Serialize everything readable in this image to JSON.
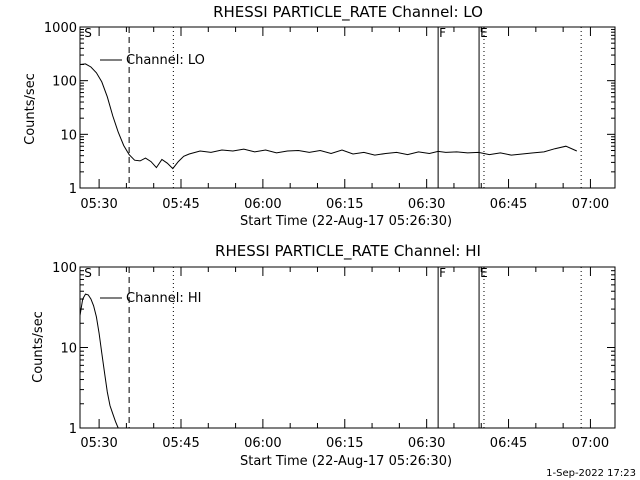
{
  "footer": {
    "timestamp": "1-Sep-2022 17:23"
  },
  "chart_data": [
    {
      "type": "line",
      "title": "RHESSI PARTICLE_RATE Channel: LO",
      "xlabel": "Start Time (22-Aug-17 05:26:30)",
      "ylabel": "Counts/sec",
      "yscale": "log",
      "ylim": [
        1,
        1000
      ],
      "y_ticks": [
        "1",
        "10",
        "100",
        "1000"
      ],
      "xlim_minutes": [
        0,
        98
      ],
      "x_ticks": [
        {
          "min": 3.5,
          "label": "05:30"
        },
        {
          "min": 18.5,
          "label": "05:45"
        },
        {
          "min": 33.5,
          "label": "06:00"
        },
        {
          "min": 48.5,
          "label": "06:15"
        },
        {
          "min": 63.5,
          "label": "06:30"
        },
        {
          "min": 78.5,
          "label": "06:45"
        },
        {
          "min": 93.5,
          "label": "07:00"
        }
      ],
      "legend": "Channel: LO",
      "markers": [
        {
          "min": 0.6,
          "label": "S",
          "style": "none"
        },
        {
          "min": 9.0,
          "label": "",
          "style": "dashed"
        },
        {
          "min": 17.1,
          "label": "",
          "style": "dotted"
        },
        {
          "min": 65.6,
          "label": "F",
          "style": "solid"
        },
        {
          "min": 73.1,
          "label": "E",
          "style": "solid"
        },
        {
          "min": 74.0,
          "label": "",
          "style": "dotted"
        },
        {
          "min": 91.8,
          "label": "",
          "style": "dotted"
        }
      ],
      "series": [
        {
          "x": [
            0,
            1,
            2,
            3,
            4,
            5,
            6,
            7,
            8,
            9,
            10,
            11,
            12,
            13,
            14,
            15,
            16,
            17,
            18,
            19,
            20,
            22,
            24,
            26,
            28,
            30,
            32,
            34,
            36,
            38,
            40,
            42,
            44,
            46,
            48,
            50,
            52,
            54,
            56,
            58,
            60,
            62,
            64,
            65.6,
            67,
            69,
            71,
            73,
            75,
            77,
            79,
            81,
            83,
            85,
            87,
            89,
            91
          ],
          "y": [
            200,
            205,
            180,
            140,
            95,
            50,
            22,
            11,
            6.2,
            4.2,
            3.3,
            3.2,
            3.6,
            3.1,
            2.4,
            3.4,
            2.9,
            2.3,
            3.1,
            3.9,
            4.3,
            4.9,
            4.6,
            5.1,
            4.9,
            5.3,
            4.7,
            5.1,
            4.5,
            4.9,
            5.0,
            4.6,
            5.0,
            4.4,
            5.1,
            4.3,
            4.6,
            4.1,
            4.4,
            4.6,
            4.2,
            4.7,
            4.4,
            4.8,
            4.6,
            4.7,
            4.5,
            4.6,
            4.2,
            4.5,
            4.1,
            4.3,
            4.5,
            4.7,
            5.4,
            6.0,
            4.9
          ]
        }
      ]
    },
    {
      "type": "line",
      "title": "RHESSI PARTICLE_RATE Channel: HI",
      "xlabel": "Start Time (22-Aug-17 05:26:30)",
      "ylabel": "Counts/sec",
      "yscale": "log",
      "ylim": [
        1,
        100
      ],
      "y_ticks": [
        "1",
        "10",
        "100"
      ],
      "xlim_minutes": [
        0,
        98
      ],
      "x_ticks": [
        {
          "min": 3.5,
          "label": "05:30"
        },
        {
          "min": 18.5,
          "label": "05:45"
        },
        {
          "min": 33.5,
          "label": "06:00"
        },
        {
          "min": 48.5,
          "label": "06:15"
        },
        {
          "min": 63.5,
          "label": "06:30"
        },
        {
          "min": 78.5,
          "label": "06:45"
        },
        {
          "min": 93.5,
          "label": "07:00"
        }
      ],
      "legend": "Channel: HI",
      "markers": [
        {
          "min": 0.6,
          "label": "S",
          "style": "none"
        },
        {
          "min": 9.0,
          "label": "",
          "style": "dashed"
        },
        {
          "min": 17.1,
          "label": "",
          "style": "dotted"
        },
        {
          "min": 65.6,
          "label": "F",
          "style": "solid"
        },
        {
          "min": 73.1,
          "label": "E",
          "style": "solid"
        },
        {
          "min": 74.0,
          "label": "",
          "style": "dotted"
        },
        {
          "min": 91.8,
          "label": "",
          "style": "dotted"
        }
      ],
      "series": [
        {
          "x": [
            0,
            0.5,
            1,
            1.5,
            2,
            2.5,
            3,
            3.5,
            4,
            4.5,
            5,
            5.5,
            6,
            6.5,
            7
          ],
          "y": [
            25,
            40,
            46,
            45,
            40,
            33,
            24,
            15,
            8.5,
            4.8,
            2.8,
            1.9,
            1.5,
            1.2,
            1.0
          ]
        }
      ]
    }
  ]
}
